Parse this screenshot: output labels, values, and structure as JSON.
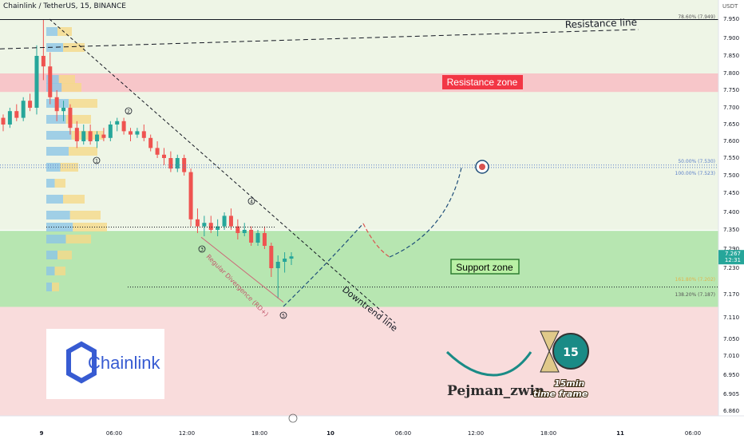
{
  "header": {
    "title": "Chainlink / TetherUS, 15, BINANCE"
  },
  "axis": {
    "unit": "USDT"
  },
  "chart_data": {
    "type": "candlestick",
    "symbol": "Chainlink / TetherUS",
    "interval": "15",
    "exchange": "BINANCE",
    "ylim": [
      6.84,
      7.97
    ],
    "y_ticks": [
      "7.950",
      "7.900",
      "7.850",
      "7.800",
      "7.750",
      "7.700",
      "7.650",
      "7.600",
      "7.550",
      "7.500",
      "7.450",
      "7.400",
      "7.350",
      "7.290",
      "7.230",
      "7.170",
      "7.110",
      "7.050",
      "7.010",
      "6.950",
      "6.905",
      "6.860"
    ],
    "x_ticks": [
      "9",
      "06:00",
      "12:00",
      "18:00",
      "10",
      "06:00",
      "12:00",
      "18:00",
      "11",
      "06:00"
    ],
    "last_price": "7.267",
    "countdown": "12:31",
    "candles": [
      [
        7.67,
        7.68,
        7.63,
        7.65
      ],
      [
        7.65,
        7.7,
        7.64,
        7.69
      ],
      [
        7.69,
        7.71,
        7.66,
        7.67
      ],
      [
        7.67,
        7.73,
        7.66,
        7.72
      ],
      [
        7.72,
        7.74,
        7.69,
        7.7
      ],
      [
        7.7,
        7.88,
        7.68,
        7.85
      ],
      [
        7.85,
        7.95,
        7.78,
        7.82
      ],
      [
        7.82,
        7.86,
        7.71,
        7.73
      ],
      [
        7.73,
        7.75,
        7.66,
        7.69
      ],
      [
        7.69,
        7.72,
        7.66,
        7.7
      ],
      [
        7.7,
        7.71,
        7.62,
        7.64
      ],
      [
        7.64,
        7.66,
        7.58,
        7.6
      ],
      [
        7.6,
        7.65,
        7.59,
        7.63
      ],
      [
        7.63,
        7.65,
        7.59,
        7.6
      ],
      [
        7.6,
        7.63,
        7.58,
        7.62
      ],
      [
        7.62,
        7.64,
        7.6,
        7.61
      ],
      [
        7.61,
        7.66,
        7.6,
        7.65
      ],
      [
        7.65,
        7.67,
        7.63,
        7.66
      ],
      [
        7.66,
        7.67,
        7.62,
        7.63
      ],
      [
        7.63,
        7.64,
        7.6,
        7.62
      ],
      [
        7.62,
        7.64,
        7.61,
        7.63
      ],
      [
        7.63,
        7.65,
        7.6,
        7.61
      ],
      [
        7.61,
        7.62,
        7.57,
        7.58
      ],
      [
        7.58,
        7.6,
        7.55,
        7.56
      ],
      [
        7.56,
        7.58,
        7.53,
        7.55
      ],
      [
        7.55,
        7.57,
        7.51,
        7.52
      ],
      [
        7.52,
        7.56,
        7.51,
        7.55
      ],
      [
        7.55,
        7.56,
        7.5,
        7.51
      ],
      [
        7.51,
        7.52,
        7.36,
        7.38
      ],
      [
        7.38,
        7.41,
        7.34,
        7.36
      ],
      [
        7.36,
        7.39,
        7.33,
        7.37
      ],
      [
        7.37,
        7.39,
        7.34,
        7.35
      ],
      [
        7.35,
        7.38,
        7.33,
        7.36
      ],
      [
        7.36,
        7.4,
        7.35,
        7.39
      ],
      [
        7.39,
        7.41,
        7.35,
        7.36
      ],
      [
        7.36,
        7.38,
        7.32,
        7.34
      ],
      [
        7.34,
        7.37,
        7.33,
        7.35
      ],
      [
        7.35,
        7.36,
        7.3,
        7.31
      ],
      [
        7.31,
        7.35,
        7.3,
        7.34
      ],
      [
        7.34,
        7.36,
        7.29,
        7.3
      ],
      [
        7.3,
        7.31,
        7.21,
        7.23
      ],
      [
        7.23,
        7.27,
        7.16,
        7.25
      ],
      [
        7.25,
        7.28,
        7.22,
        7.26
      ],
      [
        7.26,
        7.28,
        7.24,
        7.267
      ]
    ],
    "levels": [
      {
        "label": "78.60% (7.949)",
        "value": 7.949
      },
      {
        "label": "50.00% (7.530)",
        "value": 7.53
      },
      {
        "label": "100.00% (7.523)",
        "value": 7.523
      },
      {
        "label": "138.20% (7.187)",
        "value": 7.187
      },
      {
        "label": "161.80% (7.202)",
        "value": 7.202
      }
    ],
    "zones": [
      {
        "name": "Resistance zone",
        "from": 7.745,
        "to": 7.8
      },
      {
        "name": "Support zone",
        "from": 7.138,
        "to": 7.347
      }
    ],
    "annotations": [
      "Resistance line",
      "Downtrend line",
      "Regular Divergence (RD+)",
      "1",
      "2",
      "3",
      "4",
      "5"
    ]
  },
  "labels": {
    "resistance_line": "Resistance line",
    "downtrend_line": "Downtrend line",
    "divergence": "Regular Divergence (RD+)",
    "resistance_zone": "Resistance zone",
    "support_zone": "Support zone"
  },
  "branding": {
    "logo_text": "Chainlink",
    "author": "Pejman_zwin",
    "badge_number": "15",
    "badge_line1": "15min",
    "badge_line2": "time frame"
  },
  "colors": {
    "bull": "#26a69a",
    "bear": "#ef5350",
    "resistance_zone_fill": "#f7c6c9",
    "support_zone_fill": "#b7e6b1",
    "label_red": "#f23645",
    "label_green": "#4caf50",
    "chainlink_blue": "#375bd2"
  }
}
